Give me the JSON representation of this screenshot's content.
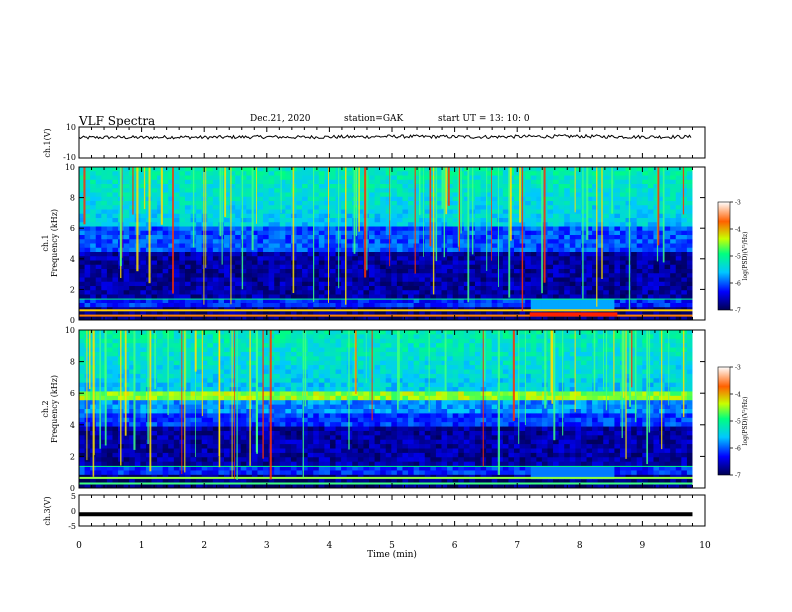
{
  "header": {
    "title": "VLF Spectra",
    "date": "Dec.21, 2020",
    "station": "station=GAK",
    "start": "start UT =  13: 10: 0"
  },
  "chart_data": [
    {
      "type": "line",
      "panel": "ch1-waveform",
      "ylabel": "ch.1(V)",
      "ylim": [
        -10,
        10
      ],
      "yticks": [
        "10",
        "-10"
      ],
      "x": [
        0,
        0.5,
        1,
        1.5,
        2,
        2.5,
        3,
        3.5,
        4,
        4.5,
        5,
        5.5,
        6,
        6.5,
        7,
        7.5,
        8,
        8.5,
        9,
        9.5,
        9.8
      ],
      "values": [
        3,
        3.4,
        3.2,
        3.5,
        3.3,
        3.5,
        3.6,
        3.4,
        3.6,
        3.7,
        3.9,
        3.8,
        3.7,
        3.6,
        3.8,
        3.9,
        4.0,
        3.8,
        3.6,
        3.7,
        3.6
      ]
    },
    {
      "type": "heatmap",
      "panel": "ch1-spectrogram",
      "ylabel": "ch.1 Frequency (kHz)",
      "yticks": [
        "0",
        "2",
        "4",
        "6",
        "8",
        "10"
      ],
      "ylim": [
        0,
        10
      ],
      "colorbar": {
        "label": "log(PSD)(V²/Hz)",
        "ticks": [
          "-3",
          "-4",
          "-5",
          "-6",
          "-7"
        ],
        "range": [
          -7,
          -3
        ]
      }
    },
    {
      "type": "heatmap",
      "panel": "ch2-spectrogram",
      "ylabel": "ch.2 Frequency (kHz)",
      "yticks": [
        "0",
        "2",
        "4",
        "6",
        "8",
        "10"
      ],
      "ylim": [
        0,
        10
      ],
      "colorbar": {
        "label": "log(PSD)(V²/Hz)",
        "ticks": [
          "-3",
          "-4",
          "-5",
          "-6",
          "-7"
        ],
        "range": [
          -7,
          -3
        ]
      }
    },
    {
      "type": "line",
      "panel": "ch3-waveform",
      "ylabel": "ch.3(V)",
      "ylim": [
        -5,
        5
      ],
      "yticks": [
        "5",
        "0",
        "-5"
      ],
      "x": [
        0,
        9.8
      ],
      "values": [
        -1.2,
        -1.2
      ]
    }
  ],
  "xaxis": {
    "label": "Time  (min)",
    "range": [
      0,
      10
    ],
    "ticks": [
      "0",
      "1",
      "2",
      "3",
      "4",
      "5",
      "6",
      "7",
      "8",
      "9",
      "10"
    ]
  },
  "colors": {
    "low": "#000060",
    "mid": "#00c8ff",
    "high": "#ff0000"
  }
}
